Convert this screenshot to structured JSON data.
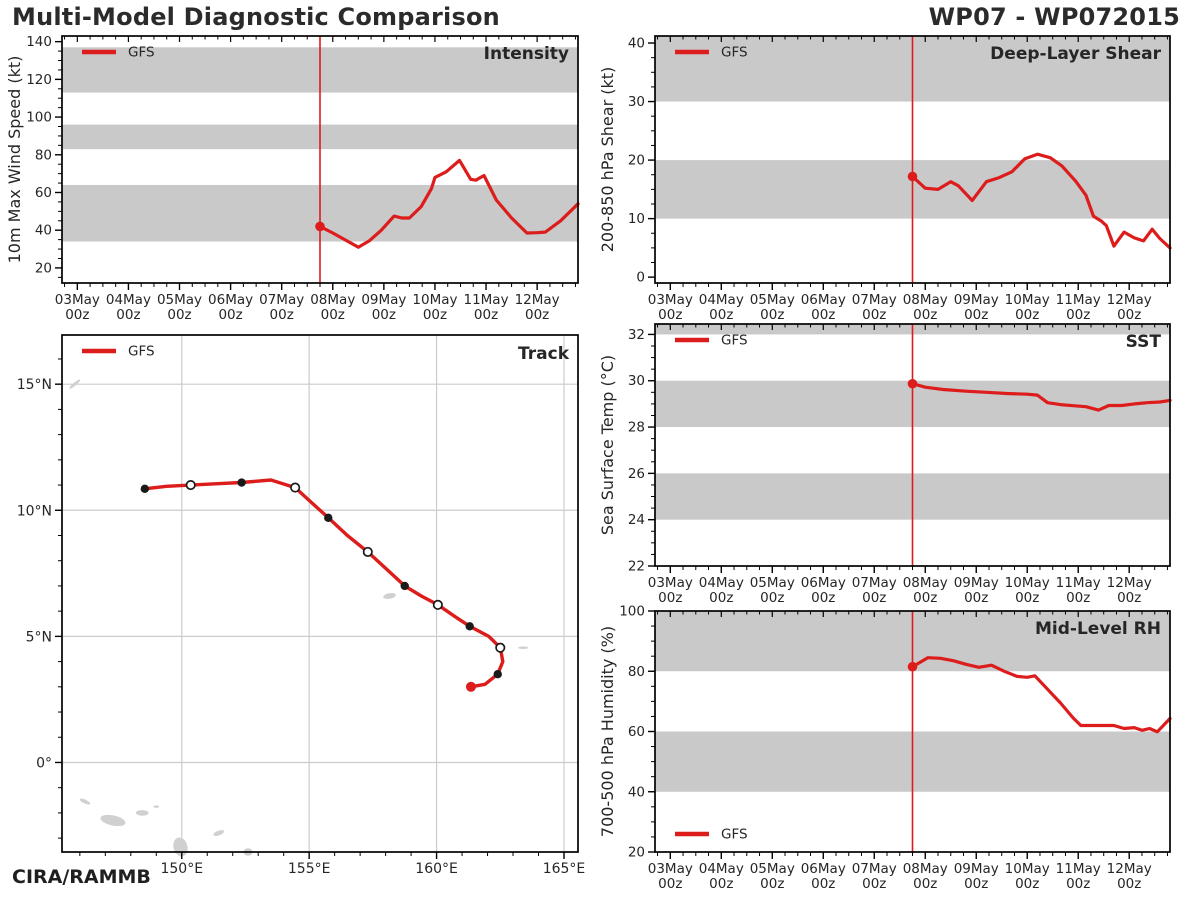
{
  "header": {
    "title": "Multi-Model Diagnostic Comparison",
    "storm_id": "WP07 - WP072015"
  },
  "footer": {
    "credit": "CIRA/RAMMB"
  },
  "colors": {
    "gfs_red": "#dd1c1c",
    "band_gray": "#c9c9c9",
    "grid_gray": "#cccccc",
    "land_gray": "#d0d0d0",
    "axis_black": "#000000",
    "text_dark": "#262626",
    "title_dark": "#2b2b2b",
    "marker_black": "#1a1a1a",
    "marker_open_fill": "#ffffff"
  },
  "time_axis": {
    "xlim": [
      -0.3,
      9.8
    ],
    "vline_x": 4.75,
    "minor_step": 0.25,
    "tick_values": [
      0,
      1,
      2,
      3,
      4,
      5,
      6,
      7,
      8,
      9
    ],
    "tick_labels_line1": [
      "03May",
      "04May",
      "05May",
      "06May",
      "07May",
      "08May",
      "09May",
      "10May",
      "11May",
      "12May"
    ],
    "tick_label_line2": "00z"
  },
  "chart_data": [
    {
      "id": "intensity",
      "type": "line",
      "title": "Intensity",
      "ylabel": "10m Max Wind Speed (kt)",
      "ylim": [
        12,
        143
      ],
      "yticks": [
        20,
        40,
        60,
        80,
        100,
        120,
        140
      ],
      "y_minor_step": 5,
      "bands": [
        [
          34,
          64
        ],
        [
          83,
          96
        ],
        [
          113,
          137
        ]
      ],
      "legend": {
        "label": "GFS",
        "position": "top-left"
      },
      "series": [
        {
          "name": "GFS",
          "x": [
            4.75,
            5.0,
            5.3,
            5.5,
            5.72,
            5.95,
            6.2,
            6.35,
            6.5,
            6.73,
            6.93,
            7.0,
            7.22,
            7.48,
            7.7,
            7.8,
            7.96,
            8.2,
            8.5,
            8.8,
            9.0,
            9.16,
            9.46,
            9.8
          ],
          "y": [
            42,
            38.5,
            34,
            31,
            34.5,
            40,
            47.5,
            46.5,
            46.5,
            52.5,
            62,
            68,
            71,
            77,
            67,
            66.5,
            69,
            56,
            46.5,
            38.5,
            38.7,
            39,
            45,
            54
          ]
        }
      ]
    },
    {
      "id": "shear",
      "type": "line",
      "title": "Deep-Layer Shear",
      "ylabel": "200-850 hPa Shear (kt)",
      "ylim": [
        -1,
        41.2
      ],
      "yticks": [
        0,
        10,
        20,
        30,
        40
      ],
      "y_minor_step": 2.5,
      "bands": [
        [
          10,
          20
        ],
        [
          30,
          41.2
        ]
      ],
      "legend": {
        "label": "GFS",
        "position": "top-left"
      },
      "series": [
        {
          "name": "GFS",
          "x": [
            4.75,
            5.0,
            5.25,
            5.5,
            5.65,
            5.92,
            6.2,
            6.45,
            6.7,
            6.95,
            7.2,
            7.45,
            7.68,
            7.95,
            8.15,
            8.3,
            8.45,
            8.55,
            8.7,
            8.9,
            9.1,
            9.28,
            9.45,
            9.6,
            9.8
          ],
          "y": [
            17.2,
            15.2,
            15.0,
            16.3,
            15.6,
            13.1,
            16.3,
            17.0,
            18.0,
            20.2,
            21.0,
            20.4,
            19.0,
            16.4,
            14.0,
            10.4,
            9.6,
            8.8,
            5.3,
            7.7,
            6.7,
            6.2,
            8.2,
            6.6,
            5.0
          ]
        }
      ]
    },
    {
      "id": "sst",
      "type": "line",
      "title": "SST",
      "ylabel": "Sea Surface Temp (°C)",
      "ylim": [
        22,
        32.45
      ],
      "yticks": [
        22,
        24,
        26,
        28,
        30,
        32
      ],
      "y_minor_step": 0.5,
      "bands": [
        [
          24,
          26
        ],
        [
          28,
          30
        ],
        [
          32,
          32.45
        ]
      ],
      "legend": {
        "label": "GFS",
        "position": "top-left"
      },
      "series": [
        {
          "name": "GFS",
          "x": [
            4.75,
            5.0,
            5.35,
            5.8,
            6.2,
            6.6,
            7.0,
            7.2,
            7.4,
            7.65,
            7.9,
            8.15,
            8.4,
            8.6,
            8.85,
            9.1,
            9.35,
            9.6,
            9.8
          ],
          "y": [
            29.87,
            29.72,
            29.62,
            29.55,
            29.5,
            29.45,
            29.42,
            29.38,
            29.05,
            28.97,
            28.92,
            28.88,
            28.73,
            28.93,
            28.93,
            29.0,
            29.05,
            29.08,
            29.15
          ]
        }
      ]
    },
    {
      "id": "rh",
      "type": "line",
      "title": "Mid-Level RH",
      "ylabel": "700-500 hPa Humidity (%)",
      "ylim": [
        20,
        100
      ],
      "yticks": [
        20,
        40,
        60,
        80,
        100
      ],
      "y_minor_step": 5,
      "bands": [
        [
          40,
          60
        ],
        [
          80,
          100
        ]
      ],
      "legend": {
        "label": "GFS",
        "position": "bottom-left"
      },
      "series": [
        {
          "name": "GFS",
          "x": [
            4.75,
            5.05,
            5.3,
            5.55,
            5.8,
            6.05,
            6.3,
            6.55,
            6.8,
            7.0,
            7.15,
            7.4,
            7.65,
            7.9,
            8.05,
            8.4,
            8.7,
            8.9,
            9.1,
            9.25,
            9.4,
            9.55,
            9.8
          ],
          "y": [
            81.5,
            84.5,
            84.3,
            83.5,
            82.3,
            81.3,
            82.0,
            80.0,
            78.3,
            78.0,
            78.5,
            74.0,
            69.5,
            64.5,
            62.0,
            62.0,
            62.0,
            61.0,
            61.3,
            60.4,
            61.0,
            59.9,
            64.3
          ]
        }
      ]
    },
    {
      "id": "track",
      "type": "track",
      "title": "Track",
      "legend": {
        "label": "GFS",
        "position": "top-left"
      },
      "xlim": [
        145.3,
        165.55
      ],
      "ylim": [
        -3.55,
        16.95
      ],
      "xticks": [
        {
          "v": 150,
          "label": "150°E"
        },
        {
          "v": 155,
          "label": "155°E"
        },
        {
          "v": 160,
          "label": "160°E"
        },
        {
          "v": 165,
          "label": "165°E"
        }
      ],
      "yticks": [
        {
          "v": 15,
          "label": "15°N"
        },
        {
          "v": 10,
          "label": "10°N"
        },
        {
          "v": 5,
          "label": "5°N"
        },
        {
          "v": 0,
          "label": "0°"
        }
      ],
      "points": [
        {
          "lon": 161.35,
          "lat": 3.0,
          "m": "start"
        },
        {
          "lon": 161.9,
          "lat": 3.1
        },
        {
          "lon": 162.4,
          "lat": 3.5,
          "m": "filled"
        },
        {
          "lon": 162.6,
          "lat": 4.0
        },
        {
          "lon": 162.5,
          "lat": 4.55,
          "m": "open"
        },
        {
          "lon": 162.05,
          "lat": 5.0
        },
        {
          "lon": 161.3,
          "lat": 5.4,
          "m": "filled"
        },
        {
          "lon": 160.7,
          "lat": 5.8
        },
        {
          "lon": 160.05,
          "lat": 6.25,
          "m": "open"
        },
        {
          "lon": 159.4,
          "lat": 6.6
        },
        {
          "lon": 158.75,
          "lat": 7.0,
          "m": "filled"
        },
        {
          "lon": 158.0,
          "lat": 7.7
        },
        {
          "lon": 157.3,
          "lat": 8.35,
          "m": "open"
        },
        {
          "lon": 156.5,
          "lat": 9.0
        },
        {
          "lon": 155.75,
          "lat": 9.7,
          "m": "filled"
        },
        {
          "lon": 155.1,
          "lat": 10.3
        },
        {
          "lon": 154.45,
          "lat": 10.9,
          "m": "open"
        },
        {
          "lon": 153.5,
          "lat": 11.2
        },
        {
          "lon": 152.35,
          "lat": 11.1,
          "m": "filled"
        },
        {
          "lon": 151.3,
          "lat": 11.05
        },
        {
          "lon": 150.35,
          "lat": 11.0,
          "m": "open"
        },
        {
          "lon": 149.4,
          "lat": 10.95
        },
        {
          "lon": 148.55,
          "lat": 10.85,
          "m": "filled"
        }
      ],
      "islands": [
        {
          "lon": 145.8,
          "lat": 15.0,
          "w": 0.55,
          "h": 0.12,
          "rot": -40
        },
        {
          "lon": 158.15,
          "lat": 6.6,
          "w": 0.5,
          "h": 0.22,
          "rot": -10
        },
        {
          "lon": 163.4,
          "lat": 4.55,
          "w": 0.4,
          "h": 0.1,
          "rot": 0
        },
        {
          "lon": 146.2,
          "lat": -1.55,
          "w": 0.45,
          "h": 0.15,
          "rot": 25
        },
        {
          "lon": 147.3,
          "lat": -2.3,
          "w": 1.0,
          "h": 0.4,
          "rot": 12
        },
        {
          "lon": 148.45,
          "lat": -2.0,
          "w": 0.5,
          "h": 0.22,
          "rot": 0
        },
        {
          "lon": 149.0,
          "lat": -1.75,
          "w": 0.22,
          "h": 0.1,
          "rot": 0
        },
        {
          "lon": 149.95,
          "lat": -3.35,
          "w": 0.55,
          "h": 0.75,
          "rot": -15
        },
        {
          "lon": 151.45,
          "lat": -2.8,
          "w": 0.45,
          "h": 0.18,
          "rot": -20
        },
        {
          "lon": 152.6,
          "lat": -3.55,
          "w": 0.35,
          "h": 0.3,
          "rot": 0
        }
      ]
    }
  ]
}
